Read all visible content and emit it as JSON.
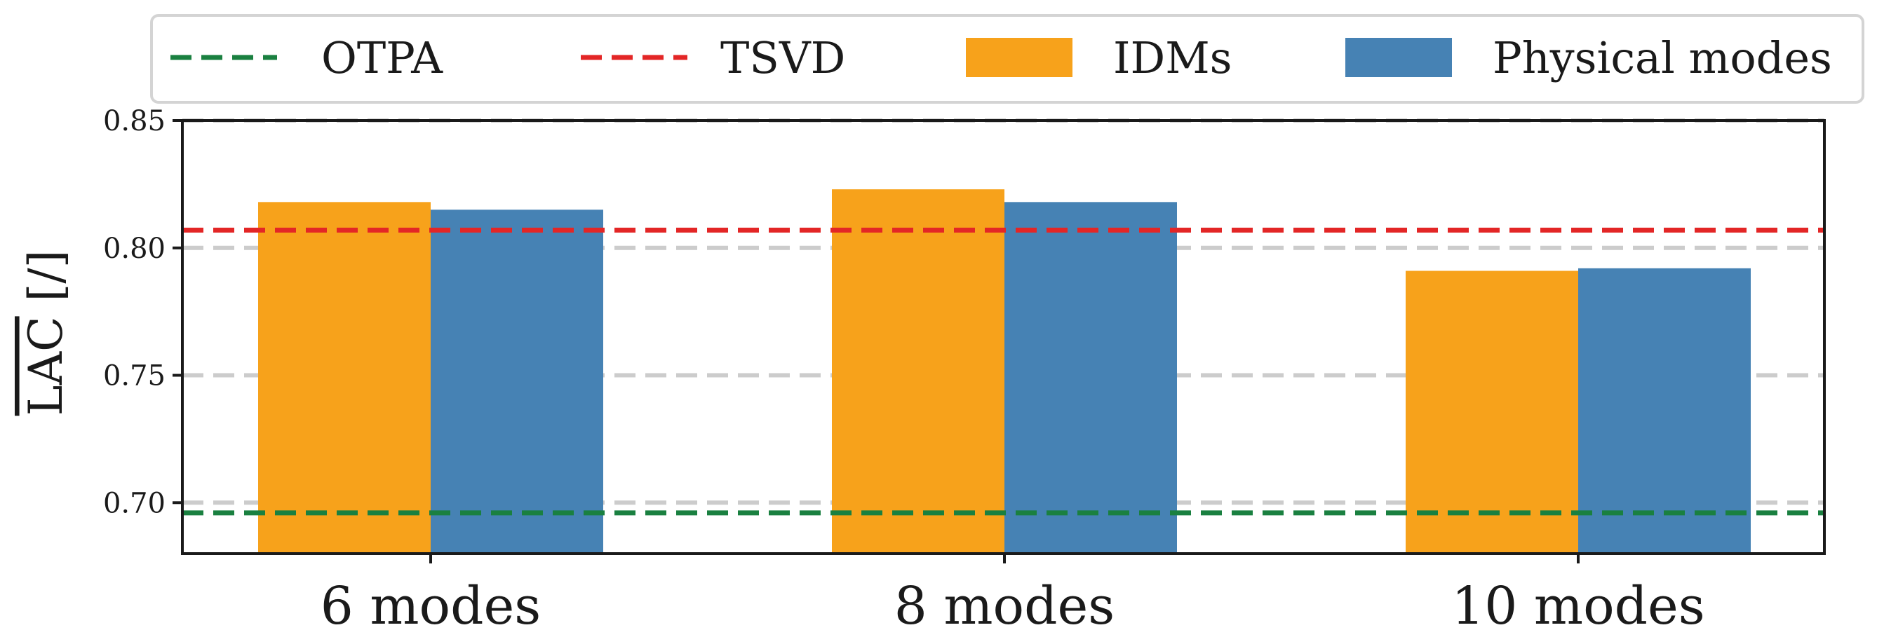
{
  "chart_data": {
    "type": "bar",
    "categories": [
      "6 modes",
      "8 modes",
      "10 modes"
    ],
    "series": [
      {
        "name": "IDMs",
        "values": [
          0.818,
          0.823,
          0.791
        ],
        "color": "#f7a21b"
      },
      {
        "name": "Physical modes",
        "values": [
          0.815,
          0.818,
          0.792
        ],
        "color": "#4682b4"
      }
    ],
    "reference_lines": [
      {
        "name": "OTPA",
        "value": 0.696,
        "color": "#1a8040",
        "style": "dashed"
      },
      {
        "name": "TSVD",
        "value": 0.807,
        "color": "#e32626",
        "style": "dashed"
      }
    ],
    "legend_order": [
      "OTPA",
      "TSVD",
      "IDMs",
      "Physical modes"
    ],
    "ylabel_overline": "LAC",
    "ylabel_suffix": "[/]",
    "ylim": [
      0.68,
      0.85
    ],
    "yticks": [
      {
        "value": 0.7,
        "label": "0.70"
      },
      {
        "value": 0.75,
        "label": "0.75"
      },
      {
        "value": 0.8,
        "label": "0.80"
      },
      {
        "value": 0.85,
        "label": "0.85"
      }
    ],
    "grid": {
      "axis": "y",
      "style": "dashed",
      "color": "#cccccc"
    },
    "legend_position": "top"
  }
}
